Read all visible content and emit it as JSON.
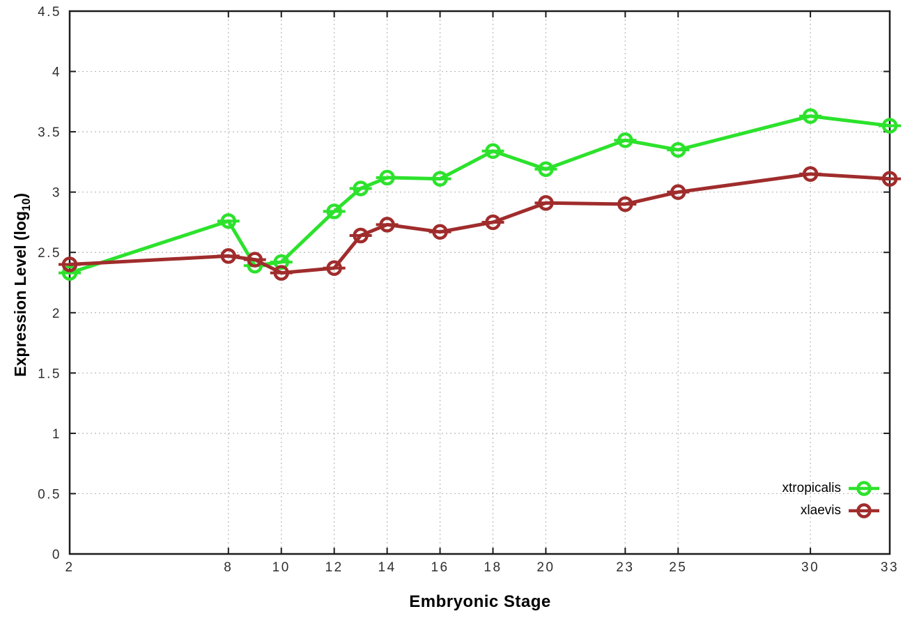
{
  "chart_data": {
    "type": "line",
    "title": "",
    "xlabel": "Embryonic Stage",
    "ylabel": "Expression Level (log10)",
    "ylabel_main": "Expression Level (log",
    "ylabel_sub": "10",
    "ylabel_close": ")",
    "xlim": [
      2,
      33
    ],
    "ylim": [
      0,
      4.5
    ],
    "x_ticks": [
      "2",
      "8",
      "10",
      "12",
      "14",
      "16",
      "18",
      "20",
      "23",
      "25",
      "30",
      "33"
    ],
    "y_ticks": [
      "0",
      "0.5",
      "1",
      "1.5",
      "2",
      "2.5",
      "3",
      "3.5",
      "4",
      "4.5"
    ],
    "grid": true,
    "grid_style": "dotted",
    "legend_position": "bottom-right",
    "marker": "open-circle-with-error-bar",
    "x": [
      2,
      8,
      9,
      10,
      12,
      13,
      14,
      16,
      18,
      20,
      23,
      25,
      30,
      33
    ],
    "series": [
      {
        "name": "xtropicalis",
        "color": "#2ce22c",
        "values": [
          2.33,
          2.76,
          2.39,
          2.42,
          2.84,
          3.03,
          3.12,
          3.11,
          3.34,
          3.19,
          3.43,
          3.35,
          3.63,
          3.55
        ]
      },
      {
        "name": "xlaevis",
        "color": "#a02c2c",
        "values": [
          2.4,
          2.47,
          2.44,
          2.33,
          2.37,
          2.64,
          2.73,
          2.67,
          2.75,
          2.91,
          2.9,
          3.0,
          3.15,
          3.11
        ]
      }
    ],
    "colors": {
      "axis": "#1c1c1c",
      "grid": "#b8b8b8",
      "tick_text": "#2e2e2e",
      "background": "#ffffff"
    }
  }
}
